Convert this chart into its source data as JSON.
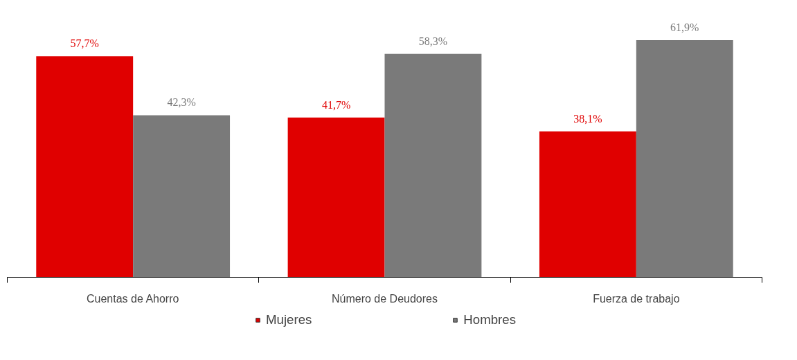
{
  "chart_data": {
    "type": "bar",
    "categories": [
      "Cuentas de Ahorro",
      "Número de Deudores",
      "Fuerza de trabajo"
    ],
    "series": [
      {
        "name": "Mujeres",
        "color": "#e00000",
        "values": [
          57.7,
          41.7,
          38.1
        ],
        "value_labels": [
          "57,7%",
          "41,7%",
          "38,1%"
        ]
      },
      {
        "name": "Hombres",
        "color": "#7a7a7a",
        "values": [
          42.3,
          58.3,
          61.9
        ],
        "value_labels": [
          "42,3%",
          "58,3%",
          "61,9%"
        ]
      }
    ],
    "legend": "bottom"
  }
}
